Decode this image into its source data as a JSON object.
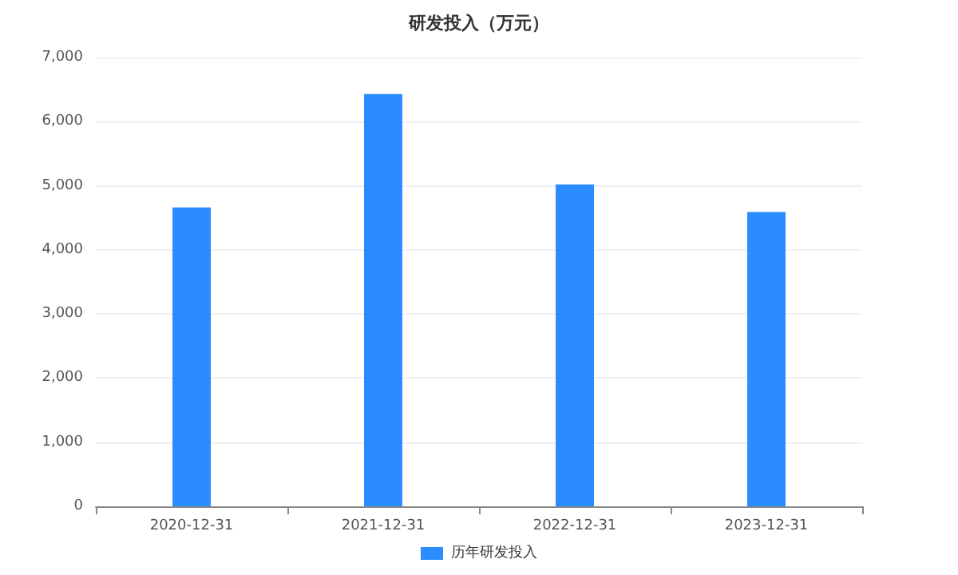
{
  "chart_data": {
    "type": "bar",
    "title": "研发投入（万元）",
    "categories": [
      "2020-12-31",
      "2021-12-31",
      "2022-12-31",
      "2023-12-31"
    ],
    "series": [
      {
        "name": "历年研发投入",
        "color": "#2b8cff",
        "values": [
          4660,
          6430,
          5020,
          4590
        ]
      }
    ],
    "ylim": [
      0,
      7000
    ],
    "yticks": [
      {
        "value": 0,
        "label": "0"
      },
      {
        "value": 1000,
        "label": "1,000"
      },
      {
        "value": 2000,
        "label": "2,000"
      },
      {
        "value": 3000,
        "label": "3,000"
      },
      {
        "value": 4000,
        "label": "4,000"
      },
      {
        "value": 5000,
        "label": "5,000"
      },
      {
        "value": 6000,
        "label": "6,000"
      },
      {
        "value": 7000,
        "label": "7,000"
      }
    ],
    "grid": "y",
    "legend": "bottom"
  }
}
